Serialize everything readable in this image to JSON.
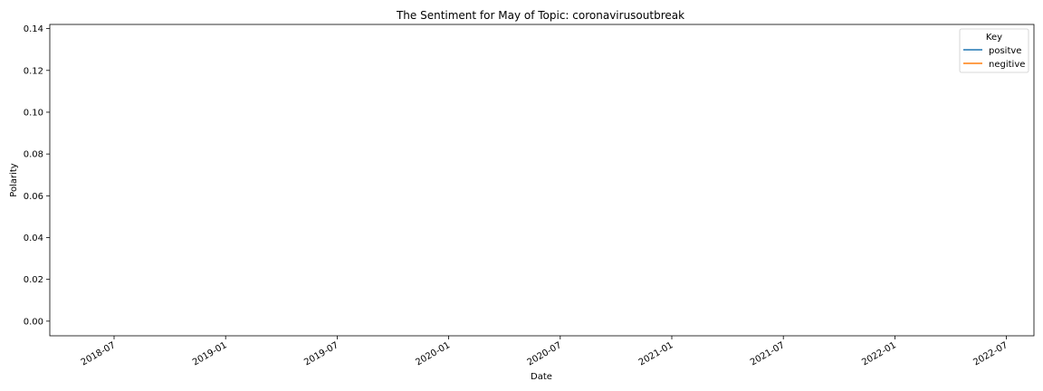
{
  "chart_data": {
    "type": "line",
    "title": "The Sentiment for May of Topic: coronavirusoutbreak",
    "xlabel": "Date",
    "ylabel": "Polarity",
    "x_ticks": [
      "2018-07",
      "2019-01",
      "2019-07",
      "2020-01",
      "2020-07",
      "2021-01",
      "2021-07",
      "2022-01",
      "2022-07"
    ],
    "y_ticks": [
      "0.00",
      "0.02",
      "0.04",
      "0.06",
      "0.08",
      "0.10",
      "0.12",
      "0.14"
    ],
    "ylim": [
      -0.007,
      0.142
    ],
    "grid": false,
    "legend": {
      "title": "Key",
      "placement": "top-right",
      "entries": [
        {
          "label": "positve",
          "color": "#1f77b4"
        },
        {
          "label": "negitive",
          "color": "#ff7f0e"
        }
      ]
    },
    "series": [
      {
        "name": "positve",
        "color": "#1f77b4",
        "points": []
      },
      {
        "name": "negitive",
        "color": "#ff7f0e",
        "points": []
      }
    ]
  }
}
